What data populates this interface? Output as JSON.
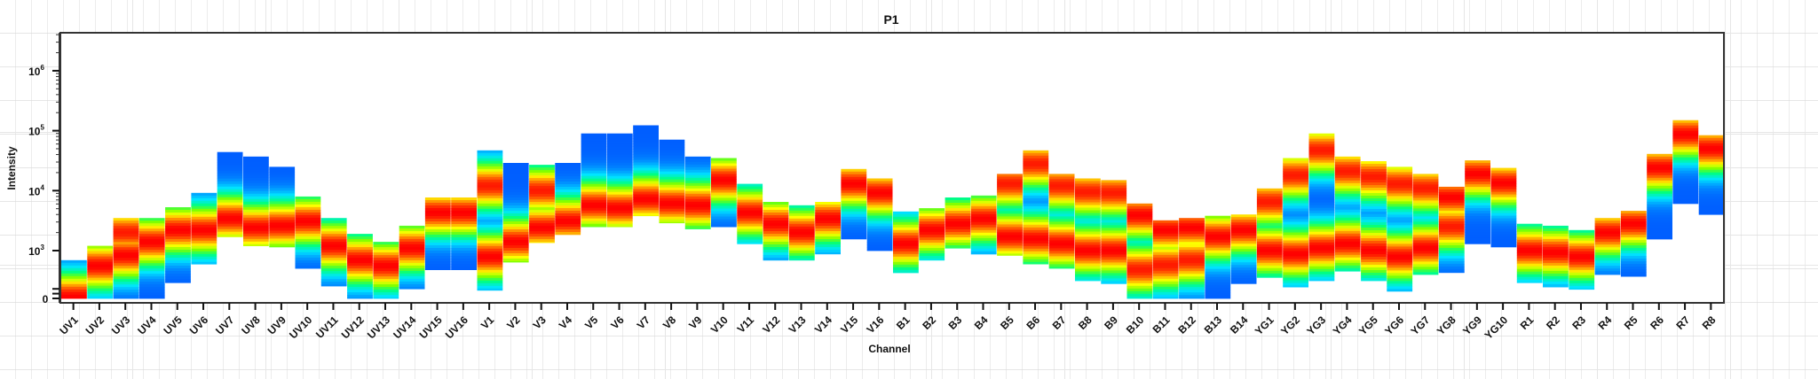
{
  "chart_data": {
    "type": "heatmap",
    "title": "P1",
    "xlabel": "Channel",
    "ylabel": "Intensity",
    "yscale": "biexponential (linear near 0, log above 10^3)",
    "ylim": [
      0,
      4300000
    ],
    "grid": false,
    "colormap": [
      "#0033ff",
      "#0080ff",
      "#00e5ff",
      "#00ff80",
      "#80ff00",
      "#ffff00",
      "#ff8000",
      "#ff0000"
    ],
    "yticks": [
      {
        "value": 1000000,
        "base": "10",
        "exp": "6"
      },
      {
        "value": 100000,
        "base": "10",
        "exp": "5"
      },
      {
        "value": 10000,
        "base": "10",
        "exp": "4"
      },
      {
        "value": 1000,
        "base": "10",
        "exp": "3"
      },
      {
        "value": 0,
        "base": "0",
        "exp": ""
      }
    ],
    "columns": [
      {
        "channel": "UV1",
        "low": 0,
        "high": 800,
        "peaks": [
          30
        ]
      },
      {
        "channel": "UV2",
        "low": 0,
        "high": 1200,
        "peaks": [
          680
        ]
      },
      {
        "channel": "UV3",
        "low": 0,
        "high": 3500,
        "peaks": [
          900,
          2000
        ]
      },
      {
        "channel": "UV4",
        "low": 0,
        "high": 3500,
        "peaks": [
          1400
        ]
      },
      {
        "channel": "UV5",
        "low": 330,
        "high": 5300,
        "peaks": [
          2200
        ]
      },
      {
        "channel": "UV6",
        "low": 720,
        "high": 9200,
        "peaks": [
          2200
        ]
      },
      {
        "channel": "UV7",
        "low": 1700,
        "high": 44000,
        "peaks": [
          3400
        ]
      },
      {
        "channel": "UV8",
        "low": 1200,
        "high": 37000,
        "peaks": [
          2400
        ]
      },
      {
        "channel": "UV9",
        "low": 1150,
        "high": 25000,
        "peaks": [
          2600
        ]
      },
      {
        "channel": "UV10",
        "low": 630,
        "high": 8000,
        "peaks": [
          3100
        ]
      },
      {
        "channel": "UV11",
        "low": 260,
        "high": 3500,
        "peaks": [
          1200
        ]
      },
      {
        "channel": "UV12",
        "low": 0,
        "high": 1900,
        "peaks": [
          800
        ]
      },
      {
        "channel": "UV13",
        "low": 0,
        "high": 1400,
        "peaks": [
          680
        ]
      },
      {
        "channel": "UV14",
        "low": 200,
        "high": 2600,
        "peaks": [
          1100
        ]
      },
      {
        "channel": "UV15",
        "low": 600,
        "high": 7700,
        "peaks": [
          4300
        ]
      },
      {
        "channel": "UV16",
        "low": 600,
        "high": 7700,
        "peaks": [
          4300
        ]
      },
      {
        "channel": "V1",
        "low": 170,
        "high": 47000,
        "peaks": [
          870,
          12000
        ]
      },
      {
        "channel": "V2",
        "low": 760,
        "high": 29000,
        "peaks": [
          1400
        ]
      },
      {
        "channel": "V3",
        "low": 1360,
        "high": 27000,
        "peaks": [
          2400,
          10000
        ]
      },
      {
        "channel": "V4",
        "low": 1850,
        "high": 29000,
        "peaks": [
          3100
        ]
      },
      {
        "channel": "V5",
        "low": 2500,
        "high": 90000,
        "peaks": [
          5700
        ]
      },
      {
        "channel": "V6",
        "low": 2500,
        "high": 90000,
        "peaks": [
          5100
        ]
      },
      {
        "channel": "V7",
        "low": 3800,
        "high": 123000,
        "peaks": [
          7200
        ]
      },
      {
        "channel": "V8",
        "low": 2900,
        "high": 71000,
        "peaks": [
          6100
        ]
      },
      {
        "channel": "V9",
        "low": 2300,
        "high": 37000,
        "peaks": [
          5700
        ]
      },
      {
        "channel": "V10",
        "low": 2500,
        "high": 35000,
        "peaks": [
          15000
        ]
      },
      {
        "channel": "V11",
        "low": 1300,
        "high": 13000,
        "peaks": [
          4300
        ]
      },
      {
        "channel": "V12",
        "low": 800,
        "high": 6500,
        "peaks": [
          2800
        ]
      },
      {
        "channel": "V13",
        "low": 800,
        "high": 5700,
        "peaks": [
          2000
        ]
      },
      {
        "channel": "V14",
        "low": 930,
        "high": 6500,
        "peaks": [
          3400
        ]
      },
      {
        "channel": "V15",
        "low": 1560,
        "high": 23000,
        "peaks": [
          13000
        ]
      },
      {
        "channel": "V16",
        "low": 1000,
        "high": 16000,
        "peaks": [
          9200
        ]
      },
      {
        "channel": "B1",
        "low": 540,
        "high": 4500,
        "peaks": [
          1300
        ]
      },
      {
        "channel": "B2",
        "low": 800,
        "high": 5100,
        "peaks": [
          2200
        ]
      },
      {
        "channel": "B3",
        "low": 1100,
        "high": 7700,
        "peaks": [
          2800
        ]
      },
      {
        "channel": "B4",
        "low": 930,
        "high": 8300,
        "peaks": [
          3400
        ]
      },
      {
        "channel": "B5",
        "low": 900,
        "high": 19000,
        "peaks": [
          1700,
          13000
        ]
      },
      {
        "channel": "B6",
        "low": 720,
        "high": 47000,
        "peaks": [
          1560,
          28000
        ]
      },
      {
        "channel": "B7",
        "low": 630,
        "high": 19000,
        "peaks": [
          1300,
          12000
        ]
      },
      {
        "channel": "B8",
        "low": 370,
        "high": 16000,
        "peaks": [
          1000,
          9500
        ]
      },
      {
        "channel": "B9",
        "low": 310,
        "high": 15000,
        "peaks": [
          1000,
          9200
        ]
      },
      {
        "channel": "B10",
        "low": 0,
        "high": 6100,
        "peaks": [
          3900,
          600
        ]
      },
      {
        "channel": "B11",
        "low": 0,
        "high": 3200,
        "peaks": [
          2200,
          700
        ]
      },
      {
        "channel": "B12",
        "low": 0,
        "high": 3500,
        "peaks": [
          2400,
          800
        ]
      },
      {
        "channel": "B13",
        "low": 0,
        "high": 3800,
        "peaks": [
          1700
        ]
      },
      {
        "channel": "B14",
        "low": 310,
        "high": 4000,
        "peaks": [
          2200
        ]
      },
      {
        "channel": "YG1",
        "low": 440,
        "high": 10900,
        "peaks": [
          1000,
          6500
        ]
      },
      {
        "channel": "YG2",
        "low": 240,
        "high": 35000,
        "peaks": [
          930,
          18000
        ]
      },
      {
        "channel": "YG3",
        "low": 370,
        "high": 90000,
        "peaks": [
          1100,
          47000
        ]
      },
      {
        "channel": "YG4",
        "low": 570,
        "high": 37000,
        "peaks": [
          1300,
          21000
        ]
      },
      {
        "channel": "YG5",
        "low": 370,
        "high": 31000,
        "peaks": [
          1000,
          17000
        ]
      },
      {
        "channel": "YG6",
        "low": 150,
        "high": 25000,
        "peaks": [
          870,
          13000
        ]
      },
      {
        "channel": "YG7",
        "low": 500,
        "high": 19000,
        "peaks": [
          1100,
          11000
        ]
      },
      {
        "channel": "YG8",
        "low": 540,
        "high": 11600,
        "peaks": [
          7700,
          2500
        ]
      },
      {
        "channel": "YG9",
        "low": 1300,
        "high": 32000,
        "peaks": [
          19000
        ]
      },
      {
        "channel": "YG10",
        "low": 1150,
        "high": 24000,
        "peaks": [
          13400
        ]
      },
      {
        "channel": "R1",
        "low": 330,
        "high": 2800,
        "peaks": [
          1000
        ]
      },
      {
        "channel": "R2",
        "low": 240,
        "high": 2600,
        "peaks": [
          960
        ]
      },
      {
        "channel": "R3",
        "low": 190,
        "high": 2200,
        "peaks": [
          870
        ]
      },
      {
        "channel": "R4",
        "low": 500,
        "high": 3500,
        "peaks": [
          2000
        ]
      },
      {
        "channel": "R5",
        "low": 460,
        "high": 4600,
        "peaks": [
          2800
        ]
      },
      {
        "channel": "R6",
        "low": 1560,
        "high": 41000,
        "peaks": [
          24000
        ]
      },
      {
        "channel": "R7",
        "low": 6100,
        "high": 150000,
        "peaks": [
          87000
        ]
      },
      {
        "channel": "R8",
        "low": 4000,
        "high": 84000,
        "peaks": [
          50000
        ]
      }
    ]
  }
}
